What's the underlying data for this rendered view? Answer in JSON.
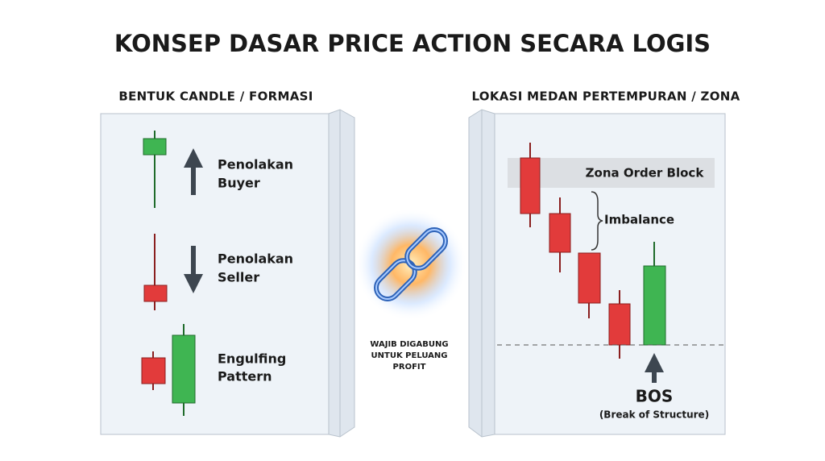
{
  "title": "KONSEP DASAR PRICE ACTION SECARA LOGIS",
  "left": {
    "heading": "BENTUK CANDLE / FORMASI",
    "items": [
      {
        "lines": [
          "Penolakan",
          "Buyer"
        ]
      },
      {
        "lines": [
          "Penolakan",
          "Seller"
        ]
      },
      {
        "lines": [
          "Engulfing",
          "Pattern"
        ]
      }
    ]
  },
  "center": {
    "caption": [
      "WAJIB DIGABUNG",
      "UNTUK PELUANG",
      "PROFIT"
    ]
  },
  "right": {
    "heading": "LOKASI MEDAN PERTEMPURAN / ZONA",
    "zone": "Zona Order Block",
    "imbalance": "Imbalance",
    "bos": "BOS",
    "bos_note": "(Break of Structure)"
  }
}
